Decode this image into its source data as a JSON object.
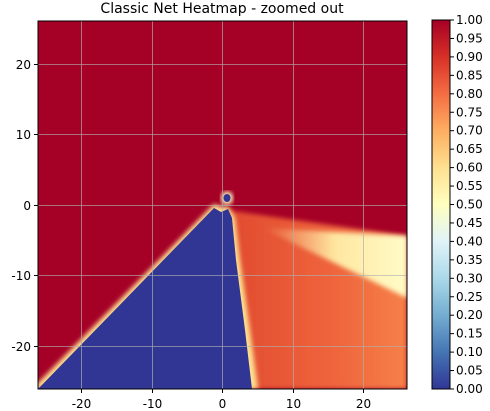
{
  "chart_data": {
    "type": "heatmap",
    "title": "Classic Net Heatmap - zoomed out",
    "xlabel": "",
    "ylabel": "",
    "xlim": [
      -26,
      26
    ],
    "ylim": [
      -26,
      26
    ],
    "x_ticks": [
      -20,
      -10,
      0,
      10,
      20
    ],
    "y_ticks": [
      -20,
      -10,
      0,
      10,
      20
    ],
    "grid": true,
    "colormap": "RdYlBu_r",
    "colorbar": {
      "range": [
        0.0,
        1.0
      ],
      "ticks": [
        "0.00",
        "0.05",
        "0.10",
        "0.15",
        "0.20",
        "0.25",
        "0.30",
        "0.35",
        "0.40",
        "0.45",
        "0.50",
        "0.55",
        "0.60",
        "0.65",
        "0.70",
        "0.75",
        "0.80",
        "0.85",
        "0.90",
        "0.95",
        "1.00"
      ]
    },
    "regions": [
      {
        "name": "background",
        "value": 1.0
      },
      {
        "name": "lower-left wedge",
        "value": 0.0,
        "boundary_line_slope": 0.95,
        "boundary_right_from": [
          0.5,
          -1
        ],
        "boundary_right_to": [
          4.5,
          -26
        ]
      },
      {
        "name": "lower-right fan",
        "value": 0.85
      },
      {
        "name": "right streak",
        "value": 0.55
      },
      {
        "name": "small blob near origin",
        "value": 0.0,
        "center": [
          0.6,
          1.0
        ]
      }
    ]
  }
}
